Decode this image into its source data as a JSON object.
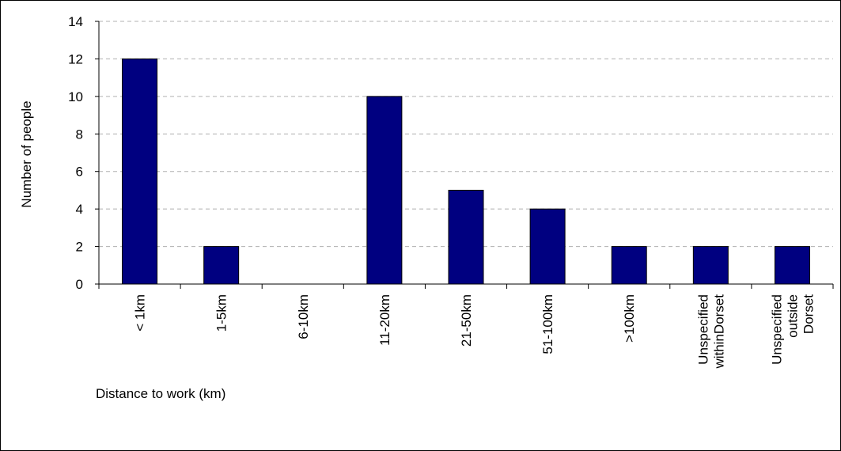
{
  "chart_data": {
    "type": "bar",
    "categories": [
      [
        "< 1km"
      ],
      [
        "1-5km"
      ],
      [
        "6-10km"
      ],
      [
        "11-20km"
      ],
      [
        "21-50km"
      ],
      [
        "51-100km"
      ],
      [
        ">100km"
      ],
      [
        "Unspecified",
        "withinDorset"
      ],
      [
        "Unspecified",
        "outside",
        "Dorset"
      ]
    ],
    "values": [
      12,
      2,
      0,
      10,
      5,
      4,
      2,
      2,
      2
    ],
    "xlabel": "Distance to work (km)",
    "ylabel": "Number of people",
    "ylim": [
      0,
      14
    ],
    "yticks": [
      0,
      2,
      4,
      6,
      8,
      10,
      12,
      14
    ],
    "grid": "horizontal dashed",
    "bar_color": "#000080",
    "gridline_color": "#b0b0b0"
  }
}
